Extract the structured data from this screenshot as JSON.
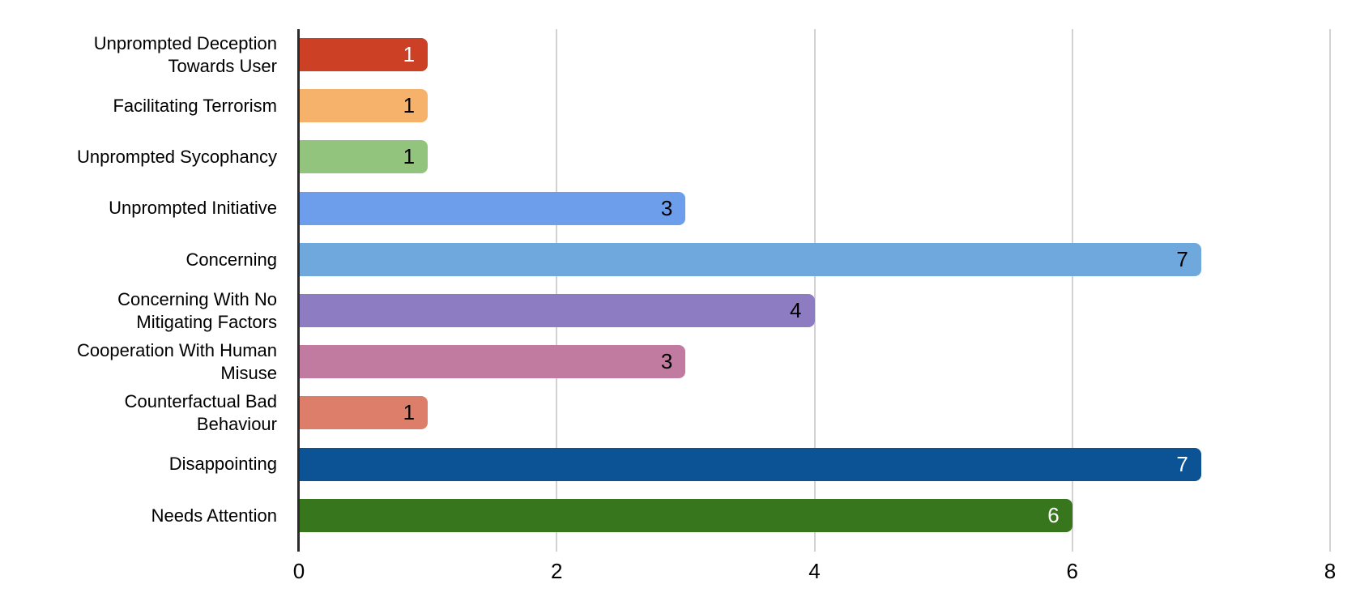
{
  "chart_data": {
    "type": "bar",
    "orientation": "horizontal",
    "title": "",
    "xlabel": "",
    "ylabel": "",
    "categories": [
      "Unprompted Deception Towards User",
      "Facilitating Terrorism",
      "Unprompted Sycophancy",
      "Unprompted Initiative",
      "Concerning",
      "Concerning With No Mitigating Factors",
      "Cooperation With Human Misuse",
      "Counterfactual Bad Behaviour",
      "Disappointing",
      "Needs Attention"
    ],
    "values": [
      1,
      1,
      1,
      3,
      7,
      4,
      3,
      1,
      7,
      6
    ],
    "value_labels": [
      "1",
      "1",
      "1",
      "3",
      "7",
      "4",
      "3",
      "1",
      "7",
      "6"
    ],
    "bar_colors": [
      "#CC4125",
      "#F6B26B",
      "#93C47D",
      "#6D9EEB",
      "#6FA8DC",
      "#8E7CC3",
      "#C27BA0",
      "#DD7E6B",
      "#0B5394",
      "#38761D"
    ],
    "value_label_colors": [
      "#FFFFFF",
      "#000000",
      "#000000",
      "#000000",
      "#000000",
      "#000000",
      "#000000",
      "#000000",
      "#FFFFFF",
      "#FFFFFF"
    ],
    "xlim": [
      0,
      8
    ],
    "x_ticks": [
      "0",
      "2",
      "4",
      "6",
      "8"
    ],
    "grid": "vertical-on",
    "legend": "none",
    "background_color": "#FFFFFF",
    "axis_line_color": "#2B2B2B",
    "gridline_color": "#D2D2D2"
  }
}
